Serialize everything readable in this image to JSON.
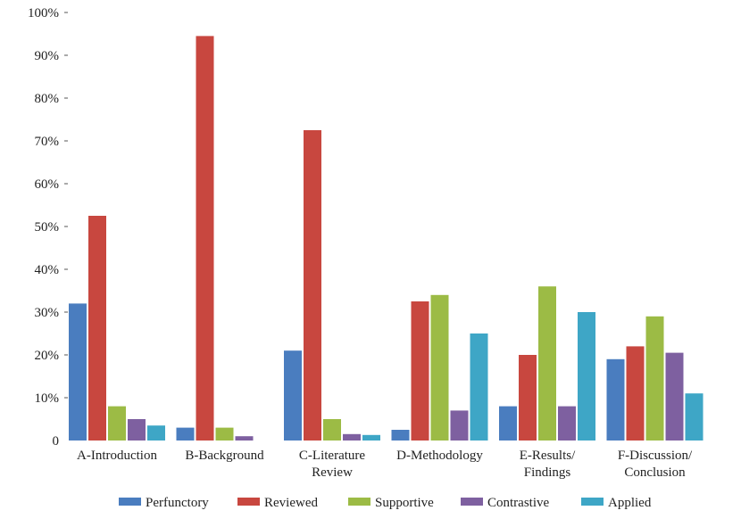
{
  "chart_data": {
    "type": "bar",
    "title": "",
    "xlabel": "",
    "ylabel": "",
    "ylim": [
      0,
      100
    ],
    "yticks": [
      0,
      10,
      20,
      30,
      40,
      50,
      60,
      70,
      80,
      90,
      100
    ],
    "ytick_labels": [
      "0",
      "10%",
      "20%",
      "30%",
      "40%",
      "50%",
      "60%",
      "70%",
      "80%",
      "90%",
      "100%"
    ],
    "grid": false,
    "legend_position": "bottom",
    "categories": [
      [
        "A-Introduction"
      ],
      [
        "B-Background"
      ],
      [
        "C-Literature",
        "Review"
      ],
      [
        "D-Methodology"
      ],
      [
        "E-Results/",
        "Findings"
      ],
      [
        "F-Discussion/",
        "Conclusion"
      ]
    ],
    "series": [
      {
        "name": "Perfunctory",
        "color": "#4a7dbf",
        "values": [
          32,
          3,
          21,
          2.5,
          8,
          19
        ]
      },
      {
        "name": "Reviewed",
        "color": "#c8473f",
        "values": [
          52.5,
          94.5,
          72.5,
          32.5,
          20,
          22
        ]
      },
      {
        "name": "Supportive",
        "color": "#9cbb45",
        "values": [
          8,
          3,
          5,
          34,
          36,
          29
        ]
      },
      {
        "name": "Contrastive",
        "color": "#7e60a0",
        "values": [
          5,
          1,
          1.5,
          7,
          8,
          20.5
        ]
      },
      {
        "name": "Applied",
        "color": "#3ea6c6",
        "values": [
          3.5,
          0,
          1.3,
          25,
          30,
          11
        ]
      }
    ]
  }
}
